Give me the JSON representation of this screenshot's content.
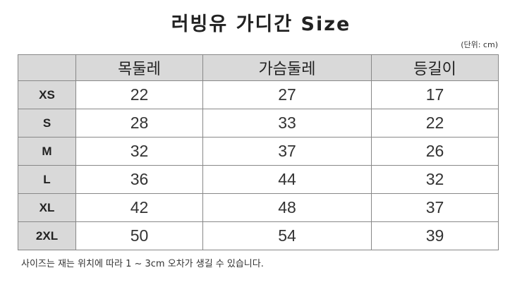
{
  "header": {
    "title": "러빙유 가디간 Size",
    "unit": "(단위: cm)"
  },
  "table": {
    "columns": [
      "목둘레",
      "가슴둘레",
      "등길이"
    ],
    "rows": [
      [
        "XS",
        22,
        27,
        17
      ],
      [
        "S",
        28,
        33,
        22
      ],
      [
        "M",
        32,
        37,
        26
      ],
      [
        "L",
        36,
        44,
        32
      ],
      [
        "XL",
        42,
        48,
        37
      ],
      [
        "2XL",
        50,
        54,
        39
      ]
    ]
  },
  "footnote": "사이즈는 재는 위치에 따라 1 ~ 3cm 오차가 생길 수 있습니다."
}
